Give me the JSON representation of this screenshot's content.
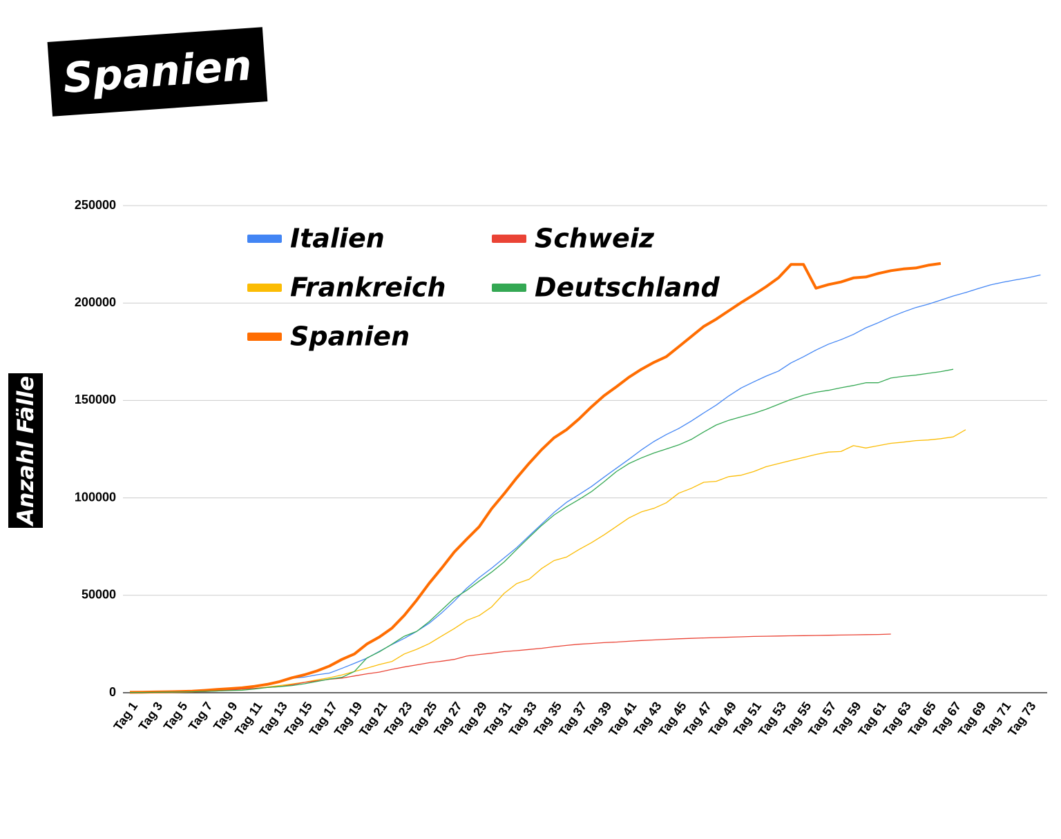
{
  "chart_data": {
    "type": "line",
    "title": "Spanien",
    "y_label": "Anzahl Fälle",
    "categories": [
      "Tag 1",
      null,
      "Tag 3",
      null,
      "Tag 5",
      null,
      "Tag 7",
      null,
      "Tag 9",
      null,
      "Tag 11",
      null,
      "Tag 13",
      null,
      "Tag 15",
      null,
      "Tag 17",
      null,
      "Tag 19",
      null,
      "Tag 21",
      null,
      "Tag 23",
      null,
      "Tag 25",
      null,
      "Tag 27",
      null,
      "Tag 29",
      null,
      "Tag 31",
      null,
      "Tag 33",
      null,
      "Tag 35",
      null,
      "Tag 37",
      null,
      "Tag 39",
      null,
      "Tag 41",
      null,
      "Tag 43",
      null,
      "Tag 45",
      null,
      "Tag 47",
      null,
      "Tag 49",
      null,
      "Tag 51",
      null,
      "Tag 53",
      null,
      "Tag 55",
      null,
      "Tag 57",
      null,
      "Tag 59",
      null,
      "Tag 61",
      null,
      "Tag 63",
      null,
      "Tag 65",
      null,
      "Tag 67",
      null,
      "Tag 69",
      null,
      "Tag 71",
      null,
      "Tag 73",
      null
    ],
    "series": [
      {
        "name": "Italien",
        "color": "#4285f4",
        "values": [
          200,
          300,
          400,
          500,
          700,
          900,
          1100,
          1700,
          2000,
          2500,
          3100,
          4600,
          5900,
          7400,
          8000,
          9200,
          10100,
          12500,
          15100,
          17700,
          21200,
          24700,
          27900,
          31500,
          35700,
          41000,
          47000,
          53600,
          59100,
          63900,
          69200,
          74400,
          80500,
          86500,
          92500,
          97700,
          101700,
          105800,
          110600,
          115200,
          119800,
          124600,
          128900,
          132500,
          135600,
          139400,
          143600,
          147600,
          152300,
          156400,
          159500,
          162500,
          165100,
          169300,
          172400,
          175900,
          178900,
          181200,
          183900,
          187300,
          189900,
          192900,
          195400,
          197700,
          199400,
          201500,
          203600,
          205400,
          207400,
          209300,
          210700,
          211900,
          213000,
          214400
        ]
      },
      {
        "name": "Frankreich",
        "color": "#fbbc04",
        "values": [
          100,
          100,
          200,
          300,
          400,
          600,
          700,
          1100,
          1400,
          1800,
          2200,
          2900,
          3700,
          4500,
          5400,
          6600,
          7700,
          9100,
          10900,
          12600,
          14500,
          16000,
          19900,
          22300,
          25200,
          29100,
          32900,
          37100,
          39600,
          44000,
          51000,
          56000,
          58200,
          63700,
          67800,
          69600,
          73500,
          77000,
          81000,
          85300,
          89700,
          92800,
          94600,
          97500,
          102400,
          104900,
          108000,
          108500,
          110900,
          111600,
          113500,
          116000,
          117600,
          119200,
          120700,
          122300,
          123500,
          123800,
          126800,
          125600,
          126800,
          128000,
          128600,
          129400,
          129700,
          130400,
          131300,
          135000,
          null,
          null,
          null,
          null,
          null,
          null
        ]
      },
      {
        "name": "Spanien",
        "color": "#ff6d01",
        "values": [
          200,
          300,
          400,
          500,
          600,
          800,
          1200,
          1700,
          2100,
          2500,
          3300,
          4300,
          5700,
          7700,
          9200,
          11200,
          13700,
          17100,
          19900,
          25000,
          28600,
          33100,
          39700,
          47600,
          56200,
          64000,
          72200,
          78800,
          85200,
          94400,
          102100,
          110200,
          117700,
          124700,
          130800,
          135000,
          140500,
          146700,
          152400,
          157000,
          161900,
          166000,
          169500,
          172500,
          177600,
          182800,
          188000,
          191700,
          196000,
          200200,
          204200,
          208400,
          213000,
          219800,
          219800,
          207600,
          209500,
          210800,
          212900,
          213400,
          215200,
          216600,
          217500,
          218000,
          219400,
          220300,
          null,
          null,
          null,
          null,
          null,
          null,
          null,
          null
        ]
      },
      {
        "name": "Schweiz",
        "color": "#ea4335",
        "values": [
          100,
          100,
          200,
          300,
          400,
          500,
          600,
          900,
          1300,
          2000,
          2200,
          2700,
          3100,
          4100,
          5300,
          6100,
          6900,
          7500,
          8600,
          9700,
          10600,
          12000,
          13200,
          14300,
          15400,
          16200,
          17100,
          18800,
          19600,
          20300,
          21100,
          21600,
          22200,
          22800,
          23600,
          24300,
          24900,
          25300,
          25700,
          26000,
          26400,
          26800,
          27100,
          27400,
          27700,
          27900,
          28100,
          28300,
          28500,
          28700,
          28900,
          29000,
          29100,
          29200,
          29300,
          29400,
          29500,
          29600,
          29700,
          29800,
          29900,
          30100,
          null,
          null,
          null,
          null,
          null,
          null,
          null,
          null,
          null,
          null,
          null,
          null
        ]
      },
      {
        "name": "Deutschland",
        "color": "#34a853",
        "values": [
          100,
          100,
          200,
          300,
          400,
          500,
          700,
          900,
          1100,
          1300,
          1900,
          2700,
          3100,
          3700,
          4600,
          5800,
          7000,
          7900,
          10900,
          17800,
          21000,
          24900,
          29000,
          31500,
          36500,
          42500,
          48500,
          52500,
          57300,
          61900,
          67100,
          73500,
          79700,
          85800,
          91200,
          95400,
          99200,
          103200,
          108200,
          113500,
          117600,
          120500,
          123000,
          125100,
          127200,
          130000,
          133800,
          137400,
          139800,
          141600,
          143300,
          145500,
          148000,
          150600,
          152700,
          154200,
          155200,
          156500,
          157700,
          159100,
          159100,
          161500,
          162400,
          163000,
          163900,
          164800,
          166000,
          null,
          null,
          null,
          null,
          null,
          null,
          null
        ]
      }
    ],
    "ylim": [
      0,
      250000
    ],
    "yticks": [
      0,
      50000,
      100000,
      150000,
      200000,
      250000
    ],
    "grid": true
  }
}
